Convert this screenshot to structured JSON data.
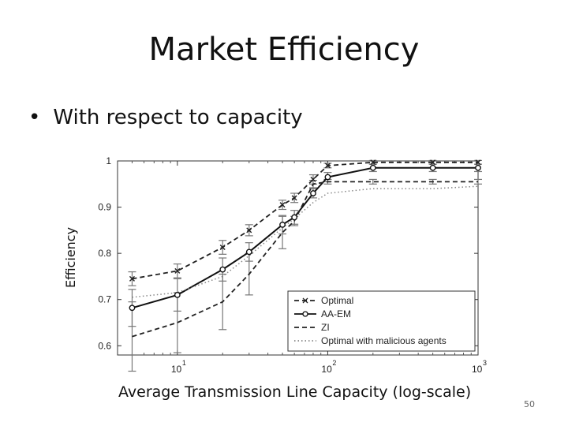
{
  "slide": {
    "title": "Market Efficiency",
    "bullet": "With respect to capacity",
    "bullet_symbol": "•",
    "page_number": "50"
  },
  "chart_data": {
    "type": "line",
    "title": "",
    "xlabel": "Average Transmission Line Capacity (log-scale)",
    "ylabel": "Efficiency",
    "x_scale": "log",
    "xlim": [
      4,
      1000
    ],
    "ylim": [
      0.58,
      1.0
    ],
    "y_ticks": [
      0.6,
      0.7,
      0.8,
      0.9,
      1
    ],
    "y_tick_labels": [
      "0.6",
      "0.7",
      "0.8",
      "0.9",
      "1"
    ],
    "x_ticks": [
      10,
      100,
      1000
    ],
    "x_tick_bases": [
      "10",
      "10",
      "10"
    ],
    "x_tick_exponents": [
      "1",
      "2",
      "3"
    ],
    "grid": false,
    "legend_position": "bottom-right",
    "x": [
      5,
      10,
      20,
      30,
      50,
      60,
      80,
      100,
      200,
      500,
      1000
    ],
    "series": [
      {
        "name": "Optimal",
        "values": [
          0.745,
          0.762,
          0.813,
          0.85,
          0.905,
          0.92,
          0.96,
          0.99,
          0.997,
          0.997,
          0.997
        ],
        "errors": [
          0.015,
          0.015,
          0.015,
          0.012,
          0.01,
          0.01,
          0.01,
          0.005,
          0.004,
          0.004,
          0.004
        ],
        "style": "dashed",
        "marker": "x",
        "color": "#222222"
      },
      {
        "name": "AA-EM",
        "values": [
          0.682,
          0.71,
          0.765,
          0.803,
          0.862,
          0.878,
          0.93,
          0.965,
          0.985,
          0.985,
          0.985
        ],
        "errors": [
          0.04,
          0.035,
          0.025,
          0.02,
          0.02,
          0.015,
          0.01,
          0.01,
          0.008,
          0.008,
          0.008
        ],
        "style": "solid",
        "marker": "circle",
        "color": "#111111"
      },
      {
        "name": "ZI",
        "values": [
          0.62,
          0.65,
          0.695,
          0.755,
          0.845,
          0.87,
          0.95,
          0.955,
          0.955,
          0.955,
          0.955
        ],
        "errors": [
          0.075,
          0.065,
          0.06,
          0.045,
          0.035,
          0.01,
          0.008,
          0.005,
          0.005,
          0.005,
          0.005
        ],
        "style": "dashed",
        "marker": "none",
        "color": "#222222"
      },
      {
        "name": "Optimal with malicious agents",
        "values": [
          0.705,
          0.715,
          0.75,
          0.795,
          0.855,
          0.875,
          0.91,
          0.93,
          0.94,
          0.94,
          0.945
        ],
        "errors": [
          0,
          0,
          0,
          0,
          0,
          0,
          0,
          0,
          0,
          0,
          0
        ],
        "style": "dotted",
        "marker": "none",
        "color": "#888888"
      }
    ]
  }
}
